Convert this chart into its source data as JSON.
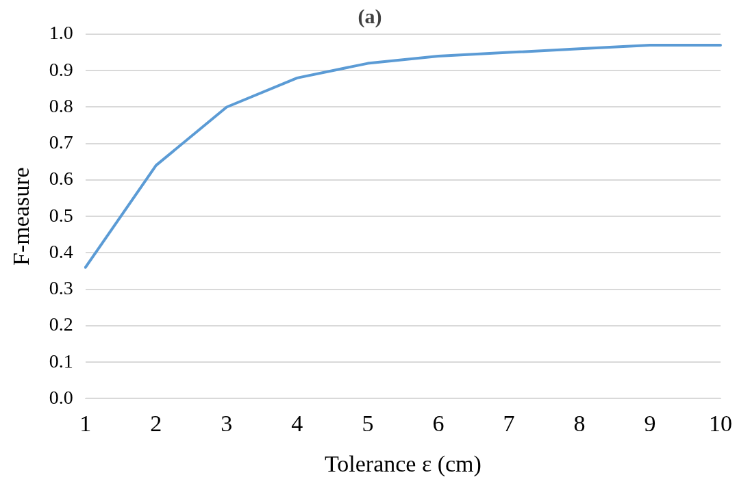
{
  "chart_data": {
    "type": "line",
    "title": "(a)",
    "xlabel": "Tolerance ε (cm)",
    "ylabel": "F-measure",
    "categories": [
      "1",
      "2",
      "3",
      "4",
      "5",
      "6",
      "7",
      "8",
      "9",
      "10"
    ],
    "series": [
      {
        "color": "#5b9bd5",
        "values": [
          0.36,
          0.64,
          0.8,
          0.88,
          0.92,
          0.94,
          0.95,
          0.96,
          0.97,
          0.97
        ]
      }
    ],
    "ylim": [
      0,
      1
    ],
    "yticks": [
      {
        "value": 0,
        "label": "0.0"
      },
      {
        "value": 0.1,
        "label": "0.1"
      },
      {
        "value": 0.2,
        "label": "0.2"
      },
      {
        "value": 0.3,
        "label": "0.3"
      },
      {
        "value": 0.4,
        "label": "0.4"
      },
      {
        "value": 0.5,
        "label": "0.5"
      },
      {
        "value": 0.6,
        "label": "0.6"
      },
      {
        "value": 0.7,
        "label": "0.7"
      },
      {
        "value": 0.8,
        "label": "0.8"
      },
      {
        "value": 0.9,
        "label": "0.9"
      },
      {
        "value": 1,
        "label": "1.0"
      }
    ],
    "grid": "y",
    "legend": false,
    "marker": "none",
    "line_style": "solid"
  }
}
